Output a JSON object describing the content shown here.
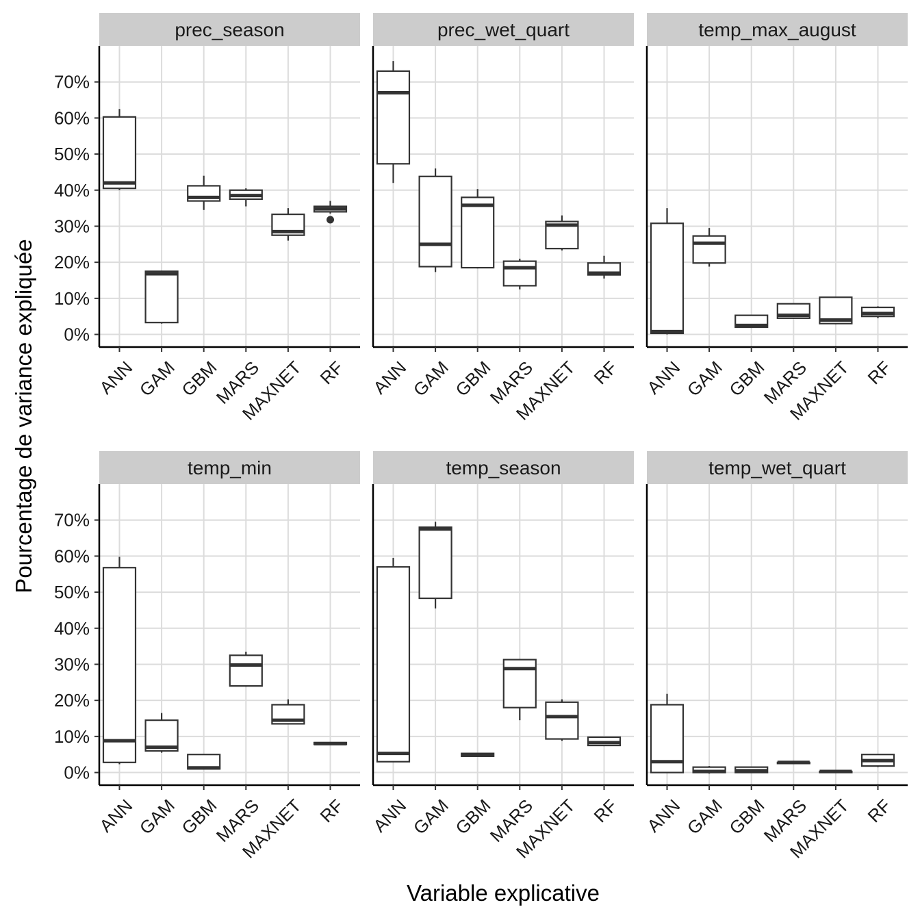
{
  "chart_data": {
    "type": "boxplot",
    "xlabel": "Variable explicative",
    "ylabel": "Pourcentage de variance expliquée",
    "ylim": [
      -3.5,
      80
    ],
    "yticks": [
      0,
      10,
      20,
      30,
      40,
      50,
      60,
      70
    ],
    "ytick_labels": [
      "0%",
      "10%",
      "20%",
      "30%",
      "40%",
      "50%",
      "60%",
      "70%"
    ],
    "categories": [
      "ANN",
      "GAM",
      "GBM",
      "MARS",
      "MAXNET",
      "RF"
    ],
    "facets": [
      {
        "title": "prec_season",
        "boxes": [
          {
            "category": "ANN",
            "lower_whisker": 40.0,
            "q1": 40.5,
            "median": 42.0,
            "q3": 60.3,
            "upper_whisker": 62.5,
            "outliers": []
          },
          {
            "category": "GAM",
            "lower_whisker": 3.0,
            "q1": 3.3,
            "median": 16.8,
            "q3": 17.5,
            "upper_whisker": 17.5,
            "outliers": []
          },
          {
            "category": "GBM",
            "lower_whisker": 34.5,
            "q1": 37.0,
            "median": 38.0,
            "q3": 41.2,
            "upper_whisker": 44.0,
            "outliers": []
          },
          {
            "category": "MARS",
            "lower_whisker": 35.5,
            "q1": 37.5,
            "median": 38.5,
            "q3": 40.0,
            "upper_whisker": 40.5,
            "outliers": []
          },
          {
            "category": "MAXNET",
            "lower_whisker": 26.0,
            "q1": 27.5,
            "median": 28.5,
            "q3": 33.3,
            "upper_whisker": 35.0,
            "outliers": []
          },
          {
            "category": "RF",
            "lower_whisker": 33.5,
            "q1": 34.0,
            "median": 34.8,
            "q3": 35.5,
            "upper_whisker": 37.0,
            "outliers": [
              31.8
            ]
          }
        ]
      },
      {
        "title": "prec_wet_quart",
        "boxes": [
          {
            "category": "ANN",
            "lower_whisker": 42.0,
            "q1": 47.3,
            "median": 67.0,
            "q3": 73.0,
            "upper_whisker": 75.8,
            "outliers": []
          },
          {
            "category": "GAM",
            "lower_whisker": 17.3,
            "q1": 18.8,
            "median": 25.0,
            "q3": 43.8,
            "upper_whisker": 46.0,
            "outliers": []
          },
          {
            "category": "GBM",
            "lower_whisker": 18.3,
            "q1": 18.5,
            "median": 35.8,
            "q3": 38.0,
            "upper_whisker": 40.3,
            "outliers": []
          },
          {
            "category": "MARS",
            "lower_whisker": 12.5,
            "q1": 13.5,
            "median": 18.5,
            "q3": 20.3,
            "upper_whisker": 21.0,
            "outliers": []
          },
          {
            "category": "MAXNET",
            "lower_whisker": 23.3,
            "q1": 23.8,
            "median": 30.3,
            "q3": 31.3,
            "upper_whisker": 33.0,
            "outliers": []
          },
          {
            "category": "RF",
            "lower_whisker": 15.5,
            "q1": 16.5,
            "median": 17.0,
            "q3": 19.8,
            "upper_whisker": 21.8,
            "outliers": []
          }
        ]
      },
      {
        "title": "temp_max_august",
        "boxes": [
          {
            "category": "ANN",
            "lower_whisker": 0.0,
            "q1": 0.3,
            "median": 0.8,
            "q3": 30.8,
            "upper_whisker": 35.0,
            "outliers": []
          },
          {
            "category": "GAM",
            "lower_whisker": 18.8,
            "q1": 19.8,
            "median": 25.3,
            "q3": 27.3,
            "upper_whisker": 29.5,
            "outliers": []
          },
          {
            "category": "GBM",
            "lower_whisker": 1.8,
            "q1": 2.0,
            "median": 2.5,
            "q3": 5.3,
            "upper_whisker": 5.3,
            "outliers": []
          },
          {
            "category": "MARS",
            "lower_whisker": 4.3,
            "q1": 4.5,
            "median": 5.3,
            "q3": 8.5,
            "upper_whisker": 8.5,
            "outliers": []
          },
          {
            "category": "MAXNET",
            "lower_whisker": 2.8,
            "q1": 3.0,
            "median": 4.0,
            "q3": 10.3,
            "upper_whisker": 10.3,
            "outliers": []
          },
          {
            "category": "RF",
            "lower_whisker": 4.5,
            "q1": 5.0,
            "median": 5.8,
            "q3": 7.5,
            "upper_whisker": 7.8,
            "outliers": []
          }
        ]
      },
      {
        "title": "temp_min",
        "boxes": [
          {
            "category": "ANN",
            "lower_whisker": 2.3,
            "q1": 2.8,
            "median": 8.8,
            "q3": 56.8,
            "upper_whisker": 59.8,
            "outliers": []
          },
          {
            "category": "GAM",
            "lower_whisker": 5.5,
            "q1": 6.0,
            "median": 7.0,
            "q3": 14.5,
            "upper_whisker": 16.5,
            "outliers": []
          },
          {
            "category": "GBM",
            "lower_whisker": 1.0,
            "q1": 1.0,
            "median": 1.3,
            "q3": 5.0,
            "upper_whisker": 5.0,
            "outliers": []
          },
          {
            "category": "MARS",
            "lower_whisker": 23.8,
            "q1": 24.0,
            "median": 29.8,
            "q3": 32.5,
            "upper_whisker": 33.5,
            "outliers": []
          },
          {
            "category": "MAXNET",
            "lower_whisker": 13.3,
            "q1": 13.5,
            "median": 14.5,
            "q3": 18.8,
            "upper_whisker": 20.3,
            "outliers": []
          },
          {
            "category": "RF",
            "lower_whisker": 7.8,
            "q1": 7.8,
            "median": 8.0,
            "q3": 8.3,
            "upper_whisker": 8.3,
            "outliers": []
          }
        ]
      },
      {
        "title": "temp_season",
        "boxes": [
          {
            "category": "ANN",
            "lower_whisker": 3.0,
            "q1": 3.0,
            "median": 5.3,
            "q3": 57.0,
            "upper_whisker": 59.5,
            "outliers": []
          },
          {
            "category": "GAM",
            "lower_whisker": 45.5,
            "q1": 48.3,
            "median": 67.5,
            "q3": 68.0,
            "upper_whisker": 69.5,
            "outliers": []
          },
          {
            "category": "GBM",
            "lower_whisker": 4.3,
            "q1": 4.5,
            "median": 4.8,
            "q3": 5.3,
            "upper_whisker": 5.3,
            "outliers": []
          },
          {
            "category": "MARS",
            "lower_whisker": 14.5,
            "q1": 18.0,
            "median": 28.8,
            "q3": 31.3,
            "upper_whisker": 31.5,
            "outliers": []
          },
          {
            "category": "MAXNET",
            "lower_whisker": 8.8,
            "q1": 9.3,
            "median": 15.5,
            "q3": 19.5,
            "upper_whisker": 20.3,
            "outliers": []
          },
          {
            "category": "RF",
            "lower_whisker": 7.3,
            "q1": 7.5,
            "median": 8.3,
            "q3": 9.8,
            "upper_whisker": 9.8,
            "outliers": []
          }
        ]
      },
      {
        "title": "temp_wet_quart",
        "boxes": [
          {
            "category": "ANN",
            "lower_whisker": 0.0,
            "q1": 0.0,
            "median": 3.0,
            "q3": 18.8,
            "upper_whisker": 21.8,
            "outliers": []
          },
          {
            "category": "GAM",
            "lower_whisker": -0.3,
            "q1": 0.0,
            "median": 0.3,
            "q3": 1.5,
            "upper_whisker": 1.8,
            "outliers": []
          },
          {
            "category": "GBM",
            "lower_whisker": 0.0,
            "q1": 0.0,
            "median": 0.5,
            "q3": 1.5,
            "upper_whisker": 1.5,
            "outliers": []
          },
          {
            "category": "MARS",
            "lower_whisker": 2.3,
            "q1": 2.5,
            "median": 2.8,
            "q3": 2.8,
            "upper_whisker": 3.0,
            "outliers": []
          },
          {
            "category": "MAXNET",
            "lower_whisker": 0.0,
            "q1": 0.0,
            "median": 0.3,
            "q3": 0.3,
            "upper_whisker": 0.5,
            "outliers": []
          },
          {
            "category": "RF",
            "lower_whisker": 1.5,
            "q1": 1.8,
            "median": 3.3,
            "q3": 5.0,
            "upper_whisker": 5.0,
            "outliers": []
          }
        ]
      }
    ]
  }
}
